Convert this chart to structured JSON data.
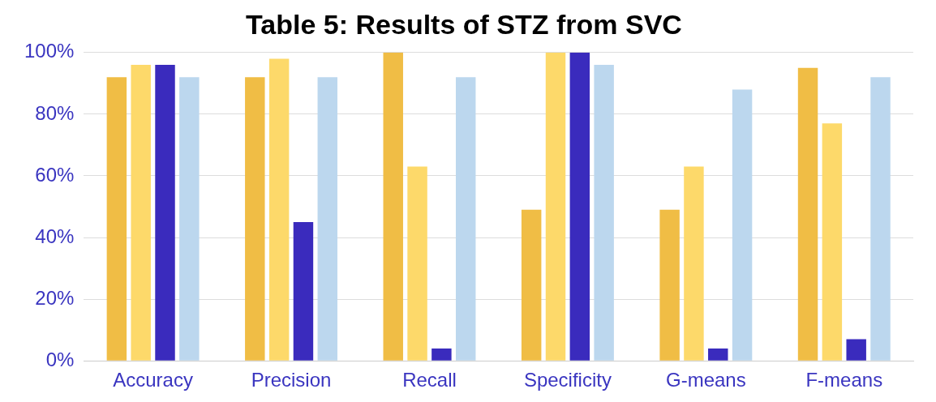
{
  "chart_data": {
    "type": "bar",
    "title": "Table 5: Results of STZ from SVC",
    "categories": [
      "Accuracy",
      "Precision",
      "Recall",
      "Specificity",
      "G-means",
      "F-means"
    ],
    "series": [
      {
        "color": "#f0bd45",
        "values": [
          92,
          92,
          100,
          49,
          49,
          95
        ]
      },
      {
        "color": "#fdd96a",
        "values": [
          96,
          98,
          63,
          100,
          63,
          77
        ]
      },
      {
        "color": "#3a2bbd",
        "values": [
          96,
          45,
          4,
          100,
          4,
          7
        ]
      },
      {
        "color": "#bcd7ee",
        "values": [
          92,
          92,
          92,
          96,
          88,
          92
        ]
      }
    ],
    "ylim": [
      0,
      100
    ],
    "yticks": [
      {
        "value": 0,
        "label": "0%"
      },
      {
        "value": 20,
        "label": "20%"
      },
      {
        "value": 40,
        "label": "40%"
      },
      {
        "value": 60,
        "label": "60%"
      },
      {
        "value": 80,
        "label": "80%"
      },
      {
        "value": 100,
        "label": "100%"
      }
    ],
    "grid": "y",
    "legend": false
  }
}
